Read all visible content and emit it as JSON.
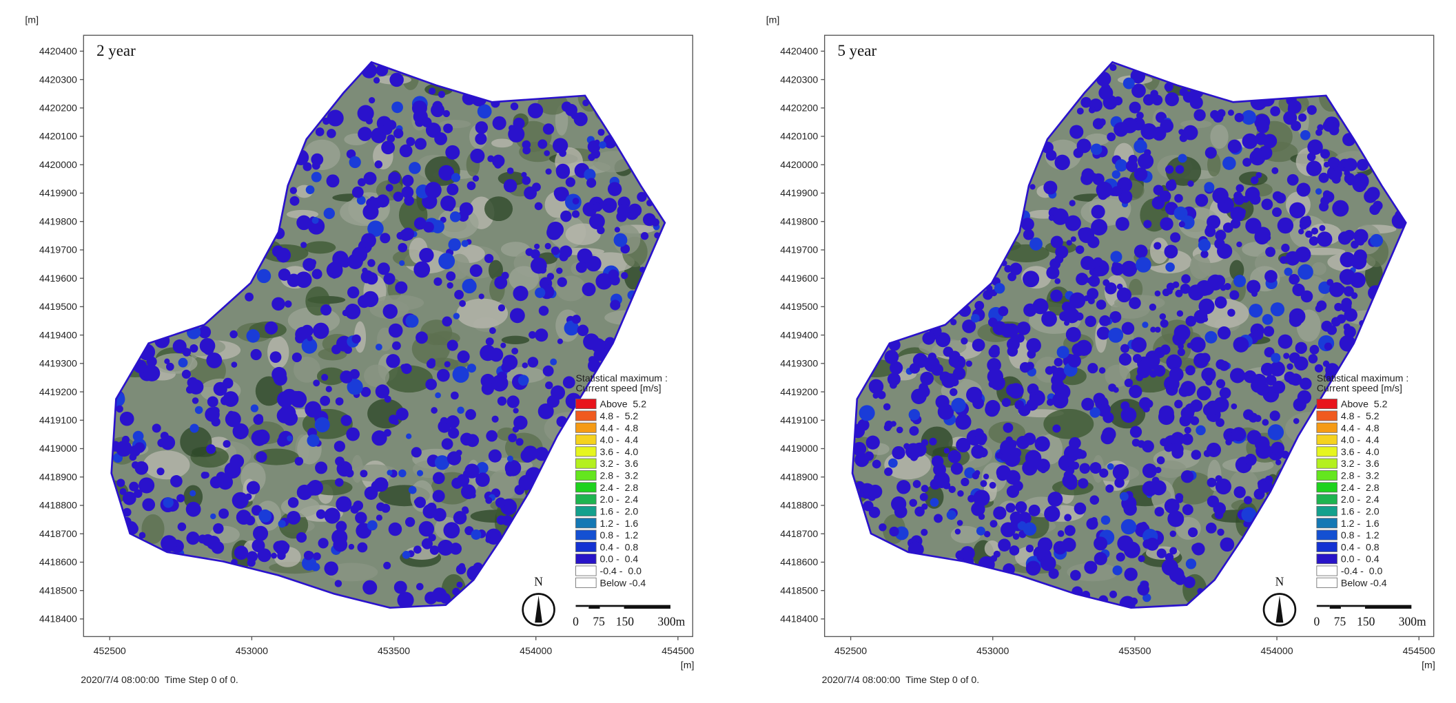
{
  "panels": [
    {
      "title": "2 year",
      "y_unit": "[m]",
      "x_unit": "[m]",
      "yticks": [
        4418400,
        4418500,
        4418600,
        4418700,
        4418800,
        4418900,
        4419000,
        4419100,
        4419200,
        4419300,
        4419400,
        4419500,
        4419600,
        4419700,
        4419800,
        4419900,
        4420000,
        4420100,
        4420200,
        4420300,
        4420400
      ],
      "ylim": [
        4418338,
        4420456
      ],
      "xticks": [
        452500,
        453000,
        453500,
        454000,
        454500
      ],
      "xlim": [
        452408,
        454552
      ],
      "legend": {
        "title": [
          "Statistical maximum :",
          "Current speed [m/s]"
        ],
        "items": [
          {
            "label": "Above  5.2",
            "color": "#e8141c"
          },
          {
            "label": "4.8 -  5.2",
            "color": "#f05a1e"
          },
          {
            "label": "4.4 -  4.8",
            "color": "#f59b14"
          },
          {
            "label": "4.0 -  4.4",
            "color": "#f5d21e"
          },
          {
            "label": "3.6 -  4.0",
            "color": "#e6f51e"
          },
          {
            "label": "3.2 -  3.6",
            "color": "#b4f01e"
          },
          {
            "label": "2.8 -  3.2",
            "color": "#64e61e"
          },
          {
            "label": "2.4 -  2.8",
            "color": "#1ed21e"
          },
          {
            "label": "2.0 -  2.4",
            "color": "#1eb450"
          },
          {
            "label": "1.6 -  2.0",
            "color": "#14a08c"
          },
          {
            "label": "1.2 -  1.6",
            "color": "#1478b4"
          },
          {
            "label": "0.8 -  1.2",
            "color": "#1450d2"
          },
          {
            "label": "0.4 -  0.8",
            "color": "#1432d2"
          },
          {
            "label": "0.0 -  0.4",
            "color": "#2814c8"
          },
          {
            "label": "-0.4 -  0.0",
            "color": "#ffffff"
          },
          {
            "label": "Below -0.4",
            "color": "#ffffff"
          }
        ]
      },
      "north": "N",
      "scale_bar": [
        "0",
        "75",
        "150",
        "300m"
      ],
      "footer": "2020/7/4 08:00:00  Time Step 0 of 0."
    },
    {
      "title": "5 year",
      "y_unit": "[m]",
      "x_unit": "[m]",
      "yticks": [
        4418400,
        4418500,
        4418600,
        4418700,
        4418800,
        4418900,
        4419000,
        4419100,
        4419200,
        4419300,
        4419400,
        4419500,
        4419600,
        4419700,
        4419800,
        4419900,
        4420000,
        4420100,
        4420200,
        4420300,
        4420400
      ],
      "ylim": [
        4418338,
        4420456
      ],
      "xticks": [
        452500,
        453000,
        453500,
        454000,
        454500
      ],
      "xlim": [
        452408,
        454552
      ],
      "legend": {
        "title": [
          "Statistical maximum :",
          "Current speed [m/s]"
        ],
        "items": [
          {
            "label": "Above  5.2",
            "color": "#e8141c"
          },
          {
            "label": "4.8 -  5.2",
            "color": "#f05a1e"
          },
          {
            "label": "4.4 -  4.8",
            "color": "#f59b14"
          },
          {
            "label": "4.0 -  4.4",
            "color": "#f5d21e"
          },
          {
            "label": "3.6 -  4.0",
            "color": "#e6f51e"
          },
          {
            "label": "3.2 -  3.6",
            "color": "#b4f01e"
          },
          {
            "label": "2.8 -  3.2",
            "color": "#64e61e"
          },
          {
            "label": "2.4 -  2.8",
            "color": "#1ed21e"
          },
          {
            "label": "2.0 -  2.4",
            "color": "#1eb450"
          },
          {
            "label": "1.6 -  2.0",
            "color": "#14a08c"
          },
          {
            "label": "1.2 -  1.6",
            "color": "#1478b4"
          },
          {
            "label": "0.8 -  1.2",
            "color": "#1450d2"
          },
          {
            "label": "0.4 -  0.8",
            "color": "#1432d2"
          },
          {
            "label": "0.0 -  0.4",
            "color": "#2814c8"
          },
          {
            "label": "-0.4 -  0.0",
            "color": "#ffffff"
          },
          {
            "label": "Below -0.4",
            "color": "#ffffff"
          }
        ]
      },
      "north": "N",
      "scale_bar": [
        "0",
        "75",
        "150",
        "300m"
      ],
      "footer": "2020/7/4 08:00:00  Time Step 0 of 0."
    }
  ]
}
